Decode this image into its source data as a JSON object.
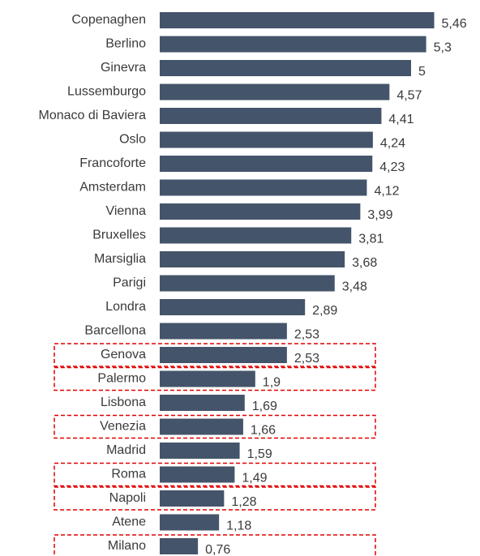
{
  "chart_data": {
    "type": "barh",
    "categories": [
      "Copenaghen",
      "Berlino",
      "Ginevra",
      "Lussemburgo",
      "Monaco di Baviera",
      "Oslo",
      "Francoforte",
      "Amsterdam",
      "Vienna",
      "Bruxelles",
      "Marsiglia",
      "Parigi",
      "Londra",
      "Barcellona",
      "Genova",
      "Palermo",
      "Lisbona",
      "Venezia",
      "Madrid",
      "Roma",
      "Napoli",
      "Atene",
      "Milano"
    ],
    "values": [
      5.46,
      5.3,
      5,
      4.57,
      4.41,
      4.24,
      4.23,
      4.12,
      3.99,
      3.81,
      3.68,
      3.48,
      2.89,
      2.53,
      2.53,
      1.9,
      1.69,
      1.66,
      1.59,
      1.49,
      1.28,
      1.18,
      0.76
    ],
    "value_labels": [
      "5,46",
      "5,3",
      "5",
      "4,57",
      "4,41",
      "4,24",
      "4,23",
      "4,12",
      "3,99",
      "3,81",
      "3,68",
      "3,48",
      "2,89",
      "2,53",
      "2,53",
      "1,9",
      "1,69",
      "1,66",
      "1,59",
      "1,49",
      "1,28",
      "1,18",
      "0,76"
    ],
    "color": "#44546a",
    "xlim": [
      0,
      5.5
    ],
    "highlight": [
      14,
      15,
      17,
      19,
      20,
      22
    ],
    "highlight_color": "#e00000"
  }
}
